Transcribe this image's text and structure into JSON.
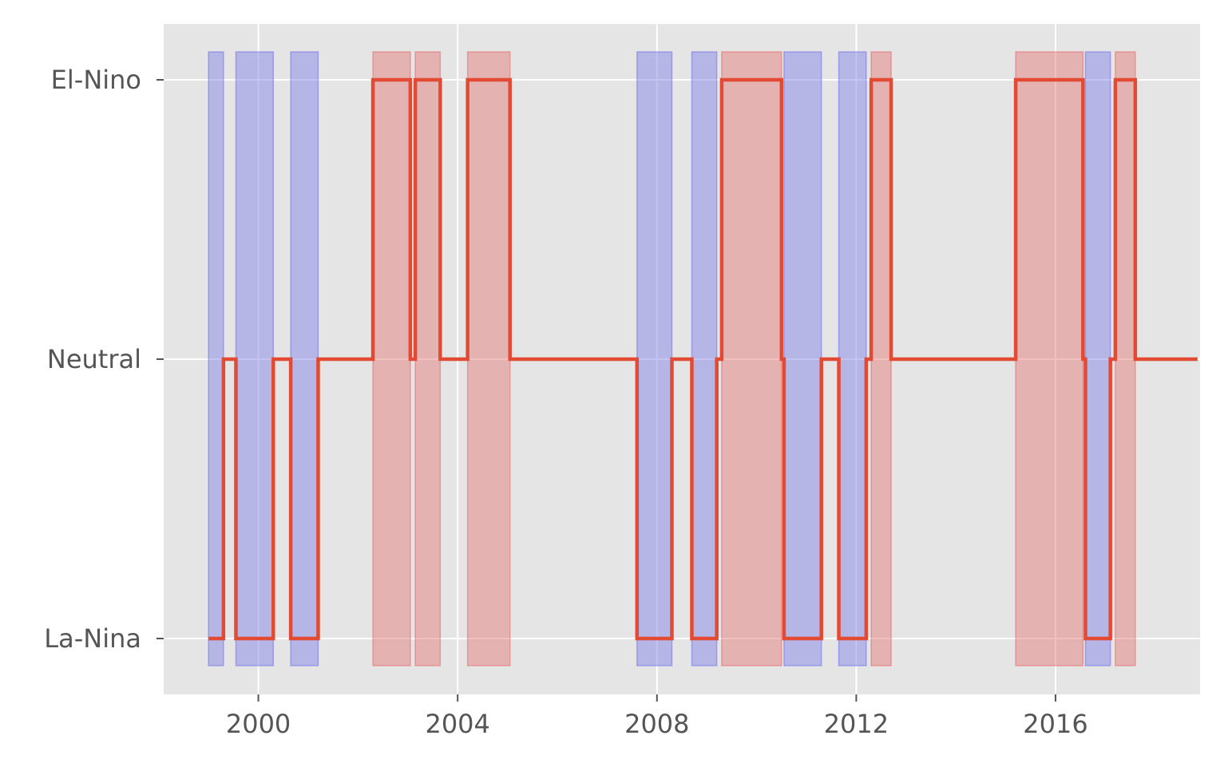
{
  "chart_data": {
    "type": "line",
    "title": "",
    "xlabel": "",
    "ylabel": "",
    "xlim": [
      1998.1,
      2018.9
    ],
    "ylim": [
      -1.2,
      1.2
    ],
    "grid": true,
    "x_ticks": [
      {
        "value": 2000,
        "label": "2000"
      },
      {
        "value": 2004,
        "label": "2004"
      },
      {
        "value": 2008,
        "label": "2008"
      },
      {
        "value": 2012,
        "label": "2012"
      },
      {
        "value": 2016,
        "label": "2016"
      }
    ],
    "y_ticks": [
      {
        "value": 1,
        "label": "El-Nino"
      },
      {
        "value": 0,
        "label": "Neutral"
      },
      {
        "value": -1,
        "label": "La-Nina"
      }
    ],
    "colors": {
      "plot_background": "#e5e5e5",
      "grid": "#ffffff",
      "line": "#e24a33",
      "la_nina_band": "#7b7be6",
      "el_nino_band": "#e57373",
      "tick_label": "#555555"
    },
    "bands": [
      {
        "type": "la-nina",
        "start": 1999.0,
        "end": 1999.3
      },
      {
        "type": "la-nina",
        "start": 1999.55,
        "end": 2000.3
      },
      {
        "type": "la-nina",
        "start": 2000.65,
        "end": 2001.2
      },
      {
        "type": "el-nino",
        "start": 2002.3,
        "end": 2003.05
      },
      {
        "type": "el-nino",
        "start": 2003.15,
        "end": 2003.65
      },
      {
        "type": "el-nino",
        "start": 2004.2,
        "end": 2005.05
      },
      {
        "type": "la-nina",
        "start": 2007.6,
        "end": 2008.3
      },
      {
        "type": "la-nina",
        "start": 2008.7,
        "end": 2009.2
      },
      {
        "type": "el-nino",
        "start": 2009.3,
        "end": 2010.5
      },
      {
        "type": "la-nina",
        "start": 2010.55,
        "end": 2011.3
      },
      {
        "type": "la-nina",
        "start": 2011.65,
        "end": 2012.2
      },
      {
        "type": "el-nino",
        "start": 2012.3,
        "end": 2012.7
      },
      {
        "type": "el-nino",
        "start": 2015.2,
        "end": 2016.55
      },
      {
        "type": "la-nina",
        "start": 2016.6,
        "end": 2017.1
      },
      {
        "type": "el-nino",
        "start": 2017.2,
        "end": 2017.6
      }
    ],
    "series": [
      {
        "x": [
          1999.0,
          1999.3,
          1999.55,
          2000.3,
          2000.65,
          2001.2,
          2002.3,
          2003.05,
          2003.15,
          2003.65,
          2004.2,
          2005.05,
          2007.6,
          2008.3,
          2008.7,
          2009.2,
          2009.3,
          2010.5,
          2010.55,
          2011.3,
          2011.65,
          2012.2,
          2012.3,
          2012.7,
          2015.2,
          2016.55,
          2016.6,
          2017.1,
          2017.2,
          2017.6,
          2018.85
        ],
        "y": [
          -1,
          0,
          -1,
          0,
          -1,
          0,
          1,
          0,
          1,
          0,
          1,
          0,
          -1,
          0,
          -1,
          0,
          1,
          0,
          -1,
          0,
          -1,
          0,
          1,
          0,
          1,
          0,
          -1,
          0,
          1,
          0,
          0
        ]
      }
    ]
  }
}
